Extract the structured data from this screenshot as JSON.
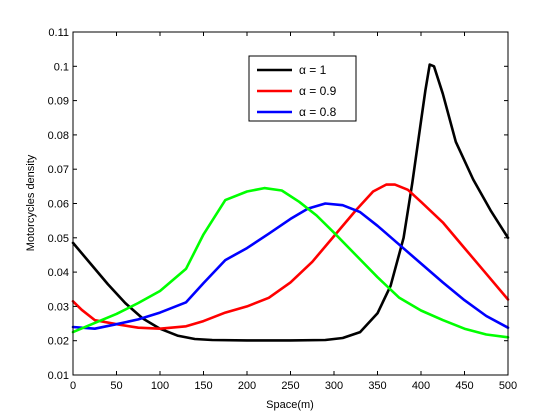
{
  "chart_data": {
    "type": "line",
    "xlabel": "Space(m)",
    "ylabel": "Motorcycles density",
    "xlim": [
      0,
      500
    ],
    "ylim": [
      0.01,
      0.11
    ],
    "xticks": [
      0,
      50,
      100,
      150,
      200,
      250,
      300,
      350,
      400,
      450,
      500
    ],
    "yticks": [
      0.01,
      0.02,
      0.03,
      0.04,
      0.05,
      0.06,
      0.07,
      0.08,
      0.09,
      0.1,
      0.11
    ],
    "xtick_labels": [
      "0",
      "50",
      "100",
      "150",
      "200",
      "250",
      "300",
      "350",
      "400",
      "450",
      "500"
    ],
    "ytick_labels": [
      "0.01",
      "0.02",
      "0.03",
      "0.04",
      "0.05",
      "0.06",
      "0.07",
      "0.08",
      "0.09",
      "0.1",
      "0.11"
    ],
    "grid": false,
    "legend_position": "top-center",
    "series": [
      {
        "name": "α = 1",
        "color": "#000000",
        "legend": true,
        "points": [
          [
            0,
            0.0485
          ],
          [
            20,
            0.0425
          ],
          [
            40,
            0.0365
          ],
          [
            60,
            0.031
          ],
          [
            80,
            0.0265
          ],
          [
            100,
            0.0235
          ],
          [
            120,
            0.0215
          ],
          [
            140,
            0.0205
          ],
          [
            160,
            0.0202
          ],
          [
            200,
            0.0201
          ],
          [
            250,
            0.0201
          ],
          [
            290,
            0.0202
          ],
          [
            310,
            0.0208
          ],
          [
            330,
            0.0225
          ],
          [
            350,
            0.028
          ],
          [
            365,
            0.036
          ],
          [
            380,
            0.05
          ],
          [
            390,
            0.066
          ],
          [
            400,
            0.084
          ],
          [
            405,
            0.093
          ],
          [
            410,
            0.1005
          ],
          [
            415,
            0.1
          ],
          [
            425,
            0.092
          ],
          [
            440,
            0.078
          ],
          [
            460,
            0.067
          ],
          [
            480,
            0.058
          ],
          [
            500,
            0.05
          ]
        ]
      },
      {
        "name": "α = 0.9",
        "color": "#ff0000",
        "legend": true,
        "points": [
          [
            0,
            0.0315
          ],
          [
            10,
            0.029
          ],
          [
            25,
            0.026
          ],
          [
            50,
            0.0248
          ],
          [
            75,
            0.0238
          ],
          [
            100,
            0.0235
          ],
          [
            130,
            0.0242
          ],
          [
            150,
            0.0257
          ],
          [
            175,
            0.0282
          ],
          [
            200,
            0.03
          ],
          [
            225,
            0.0325
          ],
          [
            250,
            0.037
          ],
          [
            275,
            0.043
          ],
          [
            300,
            0.0505
          ],
          [
            325,
            0.058
          ],
          [
            345,
            0.0635
          ],
          [
            360,
            0.0655
          ],
          [
            370,
            0.0655
          ],
          [
            385,
            0.064
          ],
          [
            400,
            0.0605
          ],
          [
            425,
            0.0545
          ],
          [
            450,
            0.047
          ],
          [
            475,
            0.0395
          ],
          [
            500,
            0.032
          ]
        ]
      },
      {
        "name": "α = 0.8",
        "color": "#0000ff",
        "legend": true,
        "points": [
          [
            0,
            0.024
          ],
          [
            25,
            0.0235
          ],
          [
            50,
            0.0248
          ],
          [
            75,
            0.0262
          ],
          [
            100,
            0.0282
          ],
          [
            130,
            0.0312
          ],
          [
            150,
            0.0368
          ],
          [
            175,
            0.0435
          ],
          [
            200,
            0.047
          ],
          [
            225,
            0.0512
          ],
          [
            250,
            0.0555
          ],
          [
            270,
            0.0585
          ],
          [
            290,
            0.06
          ],
          [
            310,
            0.0595
          ],
          [
            330,
            0.0575
          ],
          [
            350,
            0.0535
          ],
          [
            375,
            0.048
          ],
          [
            400,
            0.0425
          ],
          [
            425,
            0.037
          ],
          [
            450,
            0.0318
          ],
          [
            475,
            0.0272
          ],
          [
            500,
            0.0238
          ]
        ]
      },
      {
        "name": "",
        "color": "#00ff00",
        "legend": false,
        "points": [
          [
            0,
            0.0225
          ],
          [
            25,
            0.0252
          ],
          [
            50,
            0.0278
          ],
          [
            75,
            0.031
          ],
          [
            100,
            0.0345
          ],
          [
            130,
            0.041
          ],
          [
            150,
            0.051
          ],
          [
            175,
            0.061
          ],
          [
            200,
            0.0635
          ],
          [
            220,
            0.0645
          ],
          [
            240,
            0.0638
          ],
          [
            260,
            0.0605
          ],
          [
            280,
            0.0565
          ],
          [
            300,
            0.0515
          ],
          [
            325,
            0.045
          ],
          [
            350,
            0.0385
          ],
          [
            375,
            0.0325
          ],
          [
            400,
            0.0288
          ],
          [
            425,
            0.026
          ],
          [
            450,
            0.0235
          ],
          [
            475,
            0.0218
          ],
          [
            500,
            0.021
          ]
        ]
      }
    ]
  }
}
